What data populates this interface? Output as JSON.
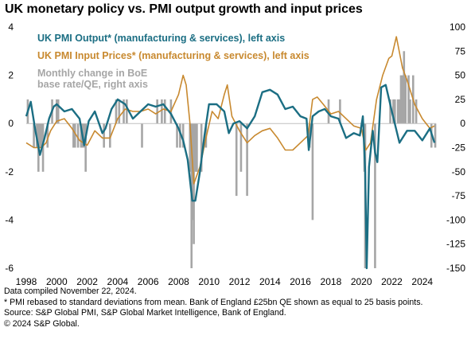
{
  "title": "UK monetary policy vs. PMI output growth and input prices",
  "chart_data": {
    "type": "line",
    "x_range": [
      1998,
      2024.9
    ],
    "x_ticks": [
      "1998",
      "2000",
      "2002",
      "2004",
      "2006",
      "2008",
      "2010",
      "2012",
      "2014",
      "2016",
      "2018",
      "2020",
      "2022",
      "2024"
    ],
    "left_axis": {
      "ylim": [
        -6,
        4
      ],
      "ticks": [
        "4",
        "2",
        "0",
        "-2",
        "-4",
        "-6"
      ]
    },
    "right_axis": {
      "ylim": [
        -150,
        100
      ],
      "ticks": [
        "100",
        "75",
        "50",
        "25",
        "0",
        "-25",
        "-50",
        "-75",
        "-100",
        "-125",
        "-150"
      ]
    },
    "grid": false,
    "legend_position": "top-left",
    "series": [
      {
        "name": "UK PMI Output* (manufacturing & services), left axis",
        "color": "#1b6e83",
        "axis": "left",
        "x": [
          1998.0,
          1998.3,
          1998.6,
          1998.9,
          1999.2,
          1999.5,
          1999.8,
          2000.0,
          2000.5,
          2001.0,
          2001.5,
          2001.8,
          2002.1,
          2002.5,
          2003.0,
          2003.2,
          2003.6,
          2004.0,
          2004.5,
          2005.0,
          2005.5,
          2006.0,
          2006.5,
          2007.0,
          2007.5,
          2008.0,
          2008.3,
          2008.6,
          2008.9,
          2009.1,
          2009.4,
          2009.7,
          2010.0,
          2010.5,
          2011.0,
          2011.3,
          2011.6,
          2012.0,
          2012.5,
          2013.0,
          2013.5,
          2014.0,
          2014.5,
          2015.0,
          2015.5,
          2016.0,
          2016.4,
          2016.55,
          2016.8,
          2017.2,
          2017.6,
          2018.0,
          2018.5,
          2019.0,
          2019.5,
          2019.9,
          2020.1,
          2020.25,
          2020.35,
          2020.5,
          2020.75,
          2020.9,
          2021.05,
          2021.3,
          2021.6,
          2022.0,
          2022.5,
          2023.0,
          2023.5,
          2024.0,
          2024.5,
          2024.8
        ],
        "values": [
          0.3,
          0.9,
          -0.3,
          -1.3,
          -0.6,
          0.2,
          0.7,
          0.8,
          0.5,
          0.6,
          0.2,
          -0.9,
          0.1,
          0.5,
          -0.4,
          -0.2,
          0.6,
          1.0,
          0.8,
          0.2,
          0.5,
          0.8,
          0.7,
          0.8,
          0.4,
          -0.2,
          -0.7,
          -1.5,
          -3.2,
          -3.2,
          -2.0,
          -0.5,
          0.8,
          0.8,
          0.5,
          -0.4,
          0.0,
          0.1,
          -0.2,
          0.3,
          1.3,
          1.4,
          1.2,
          0.6,
          0.7,
          0.3,
          0.2,
          -1.1,
          0.3,
          0.5,
          0.6,
          0.3,
          0.2,
          -0.6,
          -0.4,
          -0.5,
          0.3,
          -2.0,
          -6.0,
          -1.8,
          -0.3,
          -1.2,
          -1.6,
          1.5,
          1.6,
          0.5,
          -0.8,
          -0.3,
          -0.3,
          -0.7,
          -0.2,
          -0.8
        ]
      },
      {
        "name": "UK PMI Input Prices* (manufacturing & services), left axis",
        "color": "#c8892f",
        "axis": "left",
        "x": [
          1998.0,
          1998.5,
          1999.0,
          1999.3,
          1999.6,
          2000.0,
          2000.5,
          2001.0,
          2001.5,
          2002.0,
          2002.5,
          2003.0,
          2003.5,
          2004.0,
          2004.5,
          2005.0,
          2005.5,
          2006.0,
          2006.5,
          2007.0,
          2007.5,
          2008.0,
          2008.3,
          2008.5,
          2008.75,
          2009.0,
          2009.4,
          2009.8,
          2010.2,
          2010.6,
          2011.0,
          2011.2,
          2011.5,
          2012.0,
          2012.5,
          2013.0,
          2013.5,
          2014.0,
          2014.5,
          2015.0,
          2015.5,
          2016.0,
          2016.5,
          2016.8,
          2017.1,
          2017.5,
          2018.0,
          2018.5,
          2019.0,
          2019.5,
          2020.0,
          2020.3,
          2020.6,
          2021.0,
          2021.4,
          2021.8,
          2022.0,
          2022.3,
          2022.7,
          2023.0,
          2023.5,
          2024.0,
          2024.5,
          2024.8
        ],
        "values": [
          -0.8,
          -1.0,
          -1.0,
          -0.8,
          -0.3,
          0.1,
          0.2,
          -0.2,
          -0.7,
          -0.9,
          -0.3,
          -0.6,
          -0.6,
          0.2,
          0.6,
          0.5,
          0.5,
          0.6,
          0.4,
          0.6,
          0.5,
          1.2,
          2.0,
          1.6,
          0.0,
          -2.5,
          -1.8,
          -0.6,
          0.5,
          0.2,
          1.2,
          1.6,
          0.3,
          -0.3,
          -0.8,
          -0.5,
          -0.3,
          -0.2,
          -0.6,
          -1.1,
          -1.1,
          -0.8,
          -0.5,
          1.0,
          1.1,
          0.8,
          0.4,
          0.5,
          0.2,
          -0.1,
          -0.2,
          -1.1,
          -0.8,
          1.0,
          2.0,
          2.7,
          2.8,
          3.6,
          2.3,
          1.8,
          0.8,
          0.2,
          -0.2,
          -0.1
        ]
      },
      {
        "name": "Monthly change in BoE base rate/QE, right axis",
        "color": "#a6a6a6",
        "axis": "right",
        "x": [
          1998.1,
          1998.5,
          1998.7,
          1998.8,
          1998.9,
          1999.0,
          1999.1,
          1999.4,
          1999.7,
          2000.0,
          2000.1,
          2001.1,
          2001.2,
          2001.4,
          2001.6,
          2001.7,
          2001.8,
          2001.9,
          2003.1,
          2003.5,
          2003.9,
          2004.1,
          2004.4,
          2004.6,
          2005.6,
          2006.6,
          2006.9,
          2007.1,
          2007.5,
          2007.9,
          2008.1,
          2008.3,
          2008.75,
          2008.85,
          2008.9,
          2009.0,
          2009.1,
          2009.2,
          2009.5,
          2009.8,
          2011.8,
          2012.1,
          2012.5,
          2016.6,
          2016.8,
          2017.85,
          2018.6,
          2020.2,
          2020.25,
          2020.9,
          2021.9,
          2022.1,
          2022.2,
          2022.4,
          2022.5,
          2022.6,
          2022.7,
          2022.8,
          2022.9,
          2023.1,
          2023.2,
          2023.4,
          2023.6,
          2024.6,
          2024.85
        ],
        "values": [
          25,
          -25,
          -25,
          -50,
          -25,
          -25,
          -50,
          -25,
          25,
          25,
          25,
          -25,
          -25,
          -25,
          -25,
          -25,
          -25,
          -50,
          -25,
          -25,
          25,
          25,
          25,
          25,
          -25,
          25,
          25,
          25,
          25,
          -25,
          -25,
          -25,
          -50,
          -150,
          -100,
          -125,
          -50,
          -50,
          -50,
          -25,
          -75,
          -50,
          -75,
          -25,
          -100,
          25,
          25,
          -50,
          -150,
          -150,
          25,
          25,
          25,
          25,
          25,
          50,
          50,
          75,
          50,
          50,
          25,
          50,
          25,
          -25,
          -25
        ]
      }
    ]
  },
  "notes": [
    "Data compiled November 22, 2024.",
    "* PMI rebased to standard deviations from mean. Bank of England £25bn QE shown as equal to 25 basis points.",
    "Source: S&P Global PMI, S&P Global Market Intelligence, Bank of England.",
    "© 2024 S&P Global."
  ]
}
